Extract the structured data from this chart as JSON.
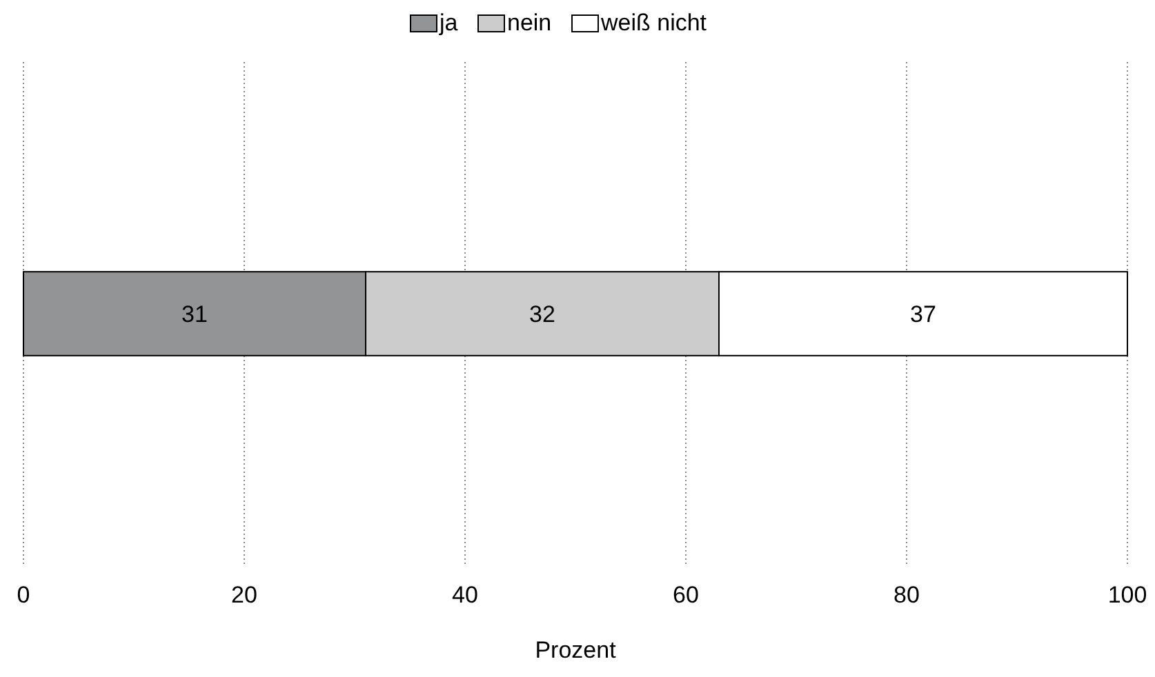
{
  "chart_data": {
    "type": "bar",
    "orientation": "horizontal",
    "stacked": true,
    "categories": [
      null
    ],
    "series": [
      {
        "name": "ja",
        "color": "#939496",
        "values": [
          31
        ]
      },
      {
        "name": "nein",
        "color": "#cccccc",
        "values": [
          32
        ]
      },
      {
        "name": "weiß nicht",
        "color": "#ffffff",
        "values": [
          37
        ]
      }
    ],
    "xlabel": "Prozent",
    "xlim": [
      0,
      100
    ],
    "xticks": [
      0,
      20,
      40,
      60,
      80,
      100
    ],
    "grid": "x",
    "legend": "top",
    "data_labels": true
  }
}
